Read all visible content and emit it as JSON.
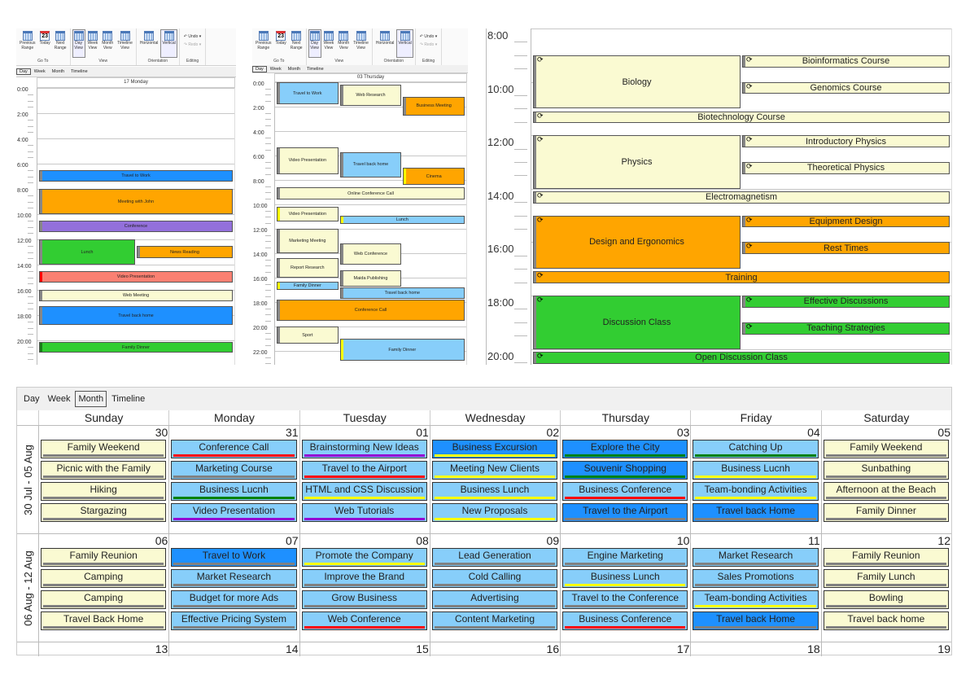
{
  "ribbon": {
    "groups": [
      {
        "label": "Go To",
        "buttons": [
          {
            "label": "Previous\nRange",
            "icon": "calendar-arrow-left-icon"
          },
          {
            "label": "Today",
            "icon": "calendar-today-icon",
            "day": "23"
          },
          {
            "label": "Next\nRange",
            "icon": "calendar-arrow-right-icon"
          }
        ]
      },
      {
        "label": "View",
        "buttons": [
          {
            "label": "Day\nView",
            "icon": "day-view-icon",
            "selected": true
          },
          {
            "label": "Week\nView",
            "icon": "week-view-icon"
          },
          {
            "label": "Month\nView",
            "icon": "month-view-icon"
          },
          {
            "label": "Timeline\nView",
            "icon": "timeline-view-icon"
          }
        ]
      },
      {
        "label": "Orientation",
        "buttons": [
          {
            "label": "Horizontal",
            "icon": "horizontal-orientation-icon"
          },
          {
            "label": "Vertical",
            "icon": "vertical-orientation-icon",
            "selected": true
          }
        ]
      }
    ],
    "editing": {
      "label": "Editing",
      "undo": "Undo",
      "redo": "Redo"
    }
  },
  "view_tabs": [
    "Day",
    "Week",
    "Month",
    "Timeline"
  ],
  "day_view_1": {
    "active_tab": "Day",
    "header": "17 Monday",
    "time_labels": [
      "0:00",
      "2:00",
      "4:00",
      "6:00",
      "8:00",
      "10:00",
      "12:00",
      "14:00",
      "16:00",
      "18:00",
      "20:00"
    ],
    "events": [
      {
        "title": "Travel to Work",
        "start": 6.5,
        "end": 7.4,
        "color": "#1e90ff"
      },
      {
        "title": "Meeting with John",
        "start": 8,
        "end": 10,
        "color": "#ffa500"
      },
      {
        "title": "Conference",
        "start": 10.5,
        "end": 11.4,
        "color": "#9370db"
      },
      {
        "title": "Lunch",
        "start": 12,
        "end": 14,
        "color": "#32cd32"
      },
      {
        "title": "News Reading",
        "start": 12.5,
        "end": 13.5,
        "color": "#ffa500"
      },
      {
        "title": "Video Presentation",
        "start": 14.5,
        "end": 15.4,
        "color": "#fa8072",
        "bar": "#ff0000"
      },
      {
        "title": "Web Meeting",
        "start": 16,
        "end": 16.9,
        "color": "#fafad2"
      },
      {
        "title": "Travel back home",
        "start": 17.3,
        "end": 18.8,
        "color": "#1e90ff"
      },
      {
        "title": "Family Dinner",
        "start": 20.1,
        "end": 21,
        "color": "#32cd32",
        "bar": "#1a7f1a"
      }
    ]
  },
  "day_view_2": {
    "active_tab": "Day",
    "header": "03 Thursday",
    "time_labels": [
      "0:00",
      "2:00",
      "4:00",
      "6:00",
      "8:00",
      "10:00",
      "12:00",
      "14:00",
      "16:00",
      "18:00",
      "20:00",
      "22:00"
    ],
    "events": [
      {
        "title": "Travel to Work",
        "start": 0,
        "end": 1.8,
        "color": "#87cefa"
      },
      {
        "title": "Web Research",
        "start": 0.2,
        "end": 1.9,
        "color": "#fafad2"
      },
      {
        "title": "Business Meeting",
        "start": 1.2,
        "end": 2.7,
        "color": "#ffa500"
      },
      {
        "title": "Video Presentation",
        "start": 5.3,
        "end": 7.5,
        "color": "#fafad2"
      },
      {
        "title": "Travel back home",
        "start": 5.7,
        "end": 7.8,
        "color": "#87cefa"
      },
      {
        "title": "Cinema",
        "start": 7,
        "end": 8.4,
        "color": "#ffa500",
        "bar": "#ffff00"
      },
      {
        "title": "Online Conference Call",
        "start": 8.6,
        "end": 9.6,
        "color": "#fafad2"
      },
      {
        "title": "Video Presentation",
        "start": 10.2,
        "end": 11.4,
        "color": "#fafad2",
        "bar": "#ffff00"
      },
      {
        "title": "Lunch",
        "start": 10.9,
        "end": 11.6,
        "color": "#87cefa",
        "bar": "#ffff00"
      },
      {
        "title": "Marketing Meeting",
        "start": 12,
        "end": 14,
        "color": "#fafad2"
      },
      {
        "title": "Web Conference",
        "start": 13.2,
        "end": 14.9,
        "color": "#fafad2"
      },
      {
        "title": "Report Research",
        "start": 14.4,
        "end": 16,
        "color": "#fafad2"
      },
      {
        "title": "Maida Publishing",
        "start": 15.4,
        "end": 16.7,
        "color": "#fafad2"
      },
      {
        "title": "Family Dinner",
        "start": 16.3,
        "end": 17,
        "color": "#87cefa",
        "bar": "#ffff00"
      },
      {
        "title": "Travel back home",
        "start": 16.8,
        "end": 17.7,
        "color": "#87cefa"
      },
      {
        "title": "Conference Call",
        "start": 17.8,
        "end": 19.5,
        "color": "#ffa500"
      },
      {
        "title": "Sport",
        "start": 20,
        "end": 21.4,
        "color": "#fafad2"
      },
      {
        "title": "Family Dinner",
        "start": 21,
        "end": 22.8,
        "color": "#87cefa",
        "bar": "#ffff00"
      }
    ]
  },
  "day_view_3": {
    "time_labels": [
      "8:00",
      "10:00",
      "12:00",
      "14:00",
      "16:00",
      "18:00",
      "20:00"
    ],
    "events": [
      {
        "title": "Biology",
        "start": 9,
        "end": 11,
        "color": "#fafad2"
      },
      {
        "title": "Bioinformatics Course",
        "start": 9,
        "end": 9.45,
        "color": "#fafad2"
      },
      {
        "title": "Genomics Course",
        "start": 10,
        "end": 10.45,
        "color": "#fafad2"
      },
      {
        "title": "Biotechnology Course",
        "start": 11.1,
        "end": 11.55,
        "color": "#fafad2"
      },
      {
        "title": "Physics",
        "start": 12,
        "end": 14,
        "color": "#fafad2"
      },
      {
        "title": "Introductory Physics",
        "start": 12,
        "end": 12.45,
        "color": "#fafad2"
      },
      {
        "title": "Theoretical Physics",
        "start": 13,
        "end": 13.45,
        "color": "#fafad2"
      },
      {
        "title": "Electromagnetism",
        "start": 14.1,
        "end": 14.55,
        "color": "#fafad2"
      },
      {
        "title": "Design and Ergonomics",
        "start": 15,
        "end": 17,
        "color": "#ffa500"
      },
      {
        "title": "Equipment Design",
        "start": 15,
        "end": 15.45,
        "color": "#ffa500"
      },
      {
        "title": "Rest Times",
        "start": 16,
        "end": 16.45,
        "color": "#ffa500"
      },
      {
        "title": "Training",
        "start": 17.1,
        "end": 17.55,
        "color": "#ffa500"
      },
      {
        "title": "Discussion Class",
        "start": 18,
        "end": 20,
        "color": "#32cd32"
      },
      {
        "title": "Effective Discussions",
        "start": 18,
        "end": 18.45,
        "color": "#32cd32"
      },
      {
        "title": "Teaching Strategies",
        "start": 19,
        "end": 19.45,
        "color": "#32cd32"
      },
      {
        "title": "Open Discussion Class",
        "start": 20.1,
        "end": 20.55,
        "color": "#32cd32"
      }
    ]
  },
  "month_view": {
    "active_tab": "Month",
    "day_names": [
      "Sunday",
      "Monday",
      "Tuesday",
      "Wednesday",
      "Thursday",
      "Friday",
      "Saturday"
    ],
    "weeks": [
      {
        "label": "30 Jul - 05 Aug",
        "days": [
          {
            "date": "30",
            "events": [
              {
                "title": "Family Weekend",
                "color": "#fafad2",
                "bar": "#808080"
              },
              {
                "title": "Picnic with the Family",
                "color": "#fafad2",
                "bar": "#808080"
              },
              {
                "title": "Hiking",
                "color": "#fafad2",
                "bar": "#808080"
              },
              {
                "title": "Stargazing",
                "color": "#fafad2",
                "bar": "#808080"
              }
            ]
          },
          {
            "date": "31",
            "events": [
              {
                "title": "Conference Call",
                "color": "#87cefa",
                "bar": "#ff0000"
              },
              {
                "title": "Marketing Course",
                "color": "#87cefa",
                "bar": "#808080"
              },
              {
                "title": "Business Lucnh",
                "color": "#87cefa",
                "bar": "#008000"
              },
              {
                "title": "Video Presentation",
                "color": "#87cefa",
                "bar": "#9400d3"
              }
            ]
          },
          {
            "date": "01",
            "events": [
              {
                "title": "Brainstorming New Ideas",
                "color": "#87cefa",
                "bar": "#9400d3"
              },
              {
                "title": "Travel to the Airport",
                "color": "#87cefa",
                "bar": "#ff0000"
              },
              {
                "title": "HTML and CSS Discussion",
                "color": "#87cefa",
                "bar": "#ffff00"
              },
              {
                "title": "Web Tutorials",
                "color": "#87cefa",
                "bar": "#9400d3"
              }
            ]
          },
          {
            "date": "02",
            "events": [
              {
                "title": "Business Excursion",
                "color": "#1e90ff",
                "bar": "#ffff00"
              },
              {
                "title": "Meeting New Clients",
                "color": "#87cefa",
                "bar": "#ffff00"
              },
              {
                "title": "Business Lunch",
                "color": "#87cefa",
                "bar": "#ffff00"
              },
              {
                "title": "New Proposals",
                "color": "#87cefa",
                "bar": "#ffff00"
              }
            ]
          },
          {
            "date": "03",
            "events": [
              {
                "title": "Explore the City",
                "color": "#1e90ff",
                "bar": "#008000"
              },
              {
                "title": "Souvenir Shopping",
                "color": "#1e90ff",
                "bar": "#008000"
              },
              {
                "title": "Business Conference",
                "color": "#87cefa",
                "bar": "#ff0000"
              },
              {
                "title": "Travel to the Airport",
                "color": "#1e90ff",
                "bar": "#808080"
              }
            ]
          },
          {
            "date": "04",
            "events": [
              {
                "title": "Catching Up",
                "color": "#87cefa",
                "bar": "#008000"
              },
              {
                "title": "Business Lucnh",
                "color": "#87cefa",
                "bar": "#ffff00"
              },
              {
                "title": "Team-bonding Activities",
                "color": "#87cefa",
                "bar": "#ffff00"
              },
              {
                "title": "Travel back Home",
                "color": "#1e90ff",
                "bar": "#808080"
              }
            ]
          },
          {
            "date": "05",
            "events": [
              {
                "title": "Family Weekend",
                "color": "#fafad2",
                "bar": "#808080"
              },
              {
                "title": "Sunbathing",
                "color": "#fafad2",
                "bar": "#808080"
              },
              {
                "title": "Afternoon at the Beach",
                "color": "#fafad2",
                "bar": "#808080"
              },
              {
                "title": "Family Dinner",
                "color": "#fafad2",
                "bar": "#808080"
              }
            ]
          }
        ]
      },
      {
        "label": "06 Aug - 12 Aug",
        "days": [
          {
            "date": "06",
            "events": [
              {
                "title": "Family Reunion",
                "color": "#fafad2",
                "bar": "#808080"
              },
              {
                "title": "Camping",
                "color": "#fafad2",
                "bar": "#808080"
              },
              {
                "title": "Camping",
                "color": "#fafad2",
                "bar": "#808080"
              },
              {
                "title": "Travel Back Home",
                "color": "#fafad2",
                "bar": "#808080"
              }
            ]
          },
          {
            "date": "07",
            "events": [
              {
                "title": "Travel to Work",
                "color": "#1e90ff",
                "bar": "#808080"
              },
              {
                "title": "Market Research",
                "color": "#87cefa",
                "bar": "#808080"
              },
              {
                "title": "Budget for more Ads",
                "color": "#87cefa",
                "bar": "#808080"
              },
              {
                "title": "Effective Pricing System",
                "color": "#87cefa",
                "bar": "#808080"
              }
            ]
          },
          {
            "date": "08",
            "events": [
              {
                "title": "Promote the Company",
                "color": "#87cefa",
                "bar": "#ffff00"
              },
              {
                "title": "Improve the Brand",
                "color": "#87cefa",
                "bar": "#808080"
              },
              {
                "title": "Grow Business",
                "color": "#87cefa",
                "bar": "#808080"
              },
              {
                "title": "Web Conference",
                "color": "#87cefa",
                "bar": "#ff0000"
              }
            ]
          },
          {
            "date": "09",
            "events": [
              {
                "title": "Lead Generation",
                "color": "#87cefa",
                "bar": "#808080"
              },
              {
                "title": "Cold Calling",
                "color": "#87cefa",
                "bar": "#808080"
              },
              {
                "title": "Advertising",
                "color": "#87cefa",
                "bar": "#808080"
              },
              {
                "title": "Content Marketing",
                "color": "#87cefa",
                "bar": "#808080"
              }
            ]
          },
          {
            "date": "10",
            "events": [
              {
                "title": "Engine Marketing",
                "color": "#87cefa",
                "bar": "#808080"
              },
              {
                "title": "Business Lunch",
                "color": "#87cefa",
                "bar": "#ffff00"
              },
              {
                "title": "Travel to the Conference",
                "color": "#87cefa",
                "bar": "#808080"
              },
              {
                "title": "Business Conference",
                "color": "#87cefa",
                "bar": "#ff0000"
              }
            ]
          },
          {
            "date": "11",
            "events": [
              {
                "title": "Market Research",
                "color": "#87cefa",
                "bar": "#808080"
              },
              {
                "title": "Sales Promotions",
                "color": "#87cefa",
                "bar": "#808080"
              },
              {
                "title": "Team-bonding Activities",
                "color": "#87cefa",
                "bar": "#ffff00"
              },
              {
                "title": "Travel back Home",
                "color": "#1e90ff",
                "bar": "#808080"
              }
            ]
          },
          {
            "date": "12",
            "events": [
              {
                "title": "Family Reunion",
                "color": "#fafad2",
                "bar": "#808080"
              },
              {
                "title": "Family Lunch",
                "color": "#fafad2",
                "bar": "#808080"
              },
              {
                "title": "Bowling",
                "color": "#fafad2",
                "bar": "#808080"
              },
              {
                "title": "Travel back home",
                "color": "#fafad2",
                "bar": "#808080"
              }
            ]
          }
        ]
      }
    ],
    "next_week_dates": [
      "13",
      "14",
      "15",
      "16",
      "17",
      "18",
      "19"
    ]
  }
}
